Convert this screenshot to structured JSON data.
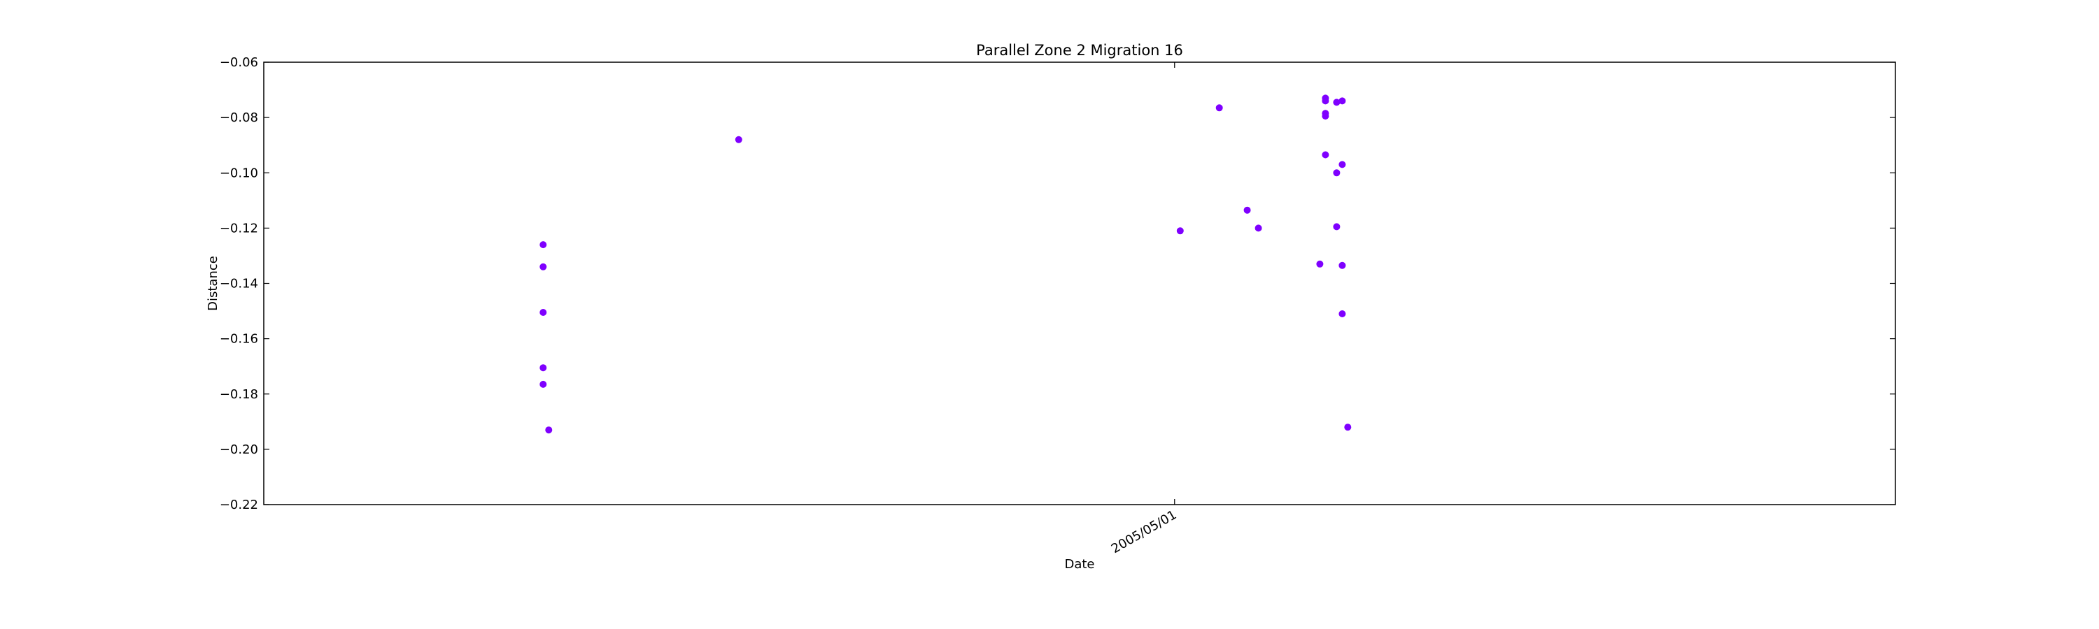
{
  "chart_data": {
    "type": "scatter",
    "title": "Parallel Zone 2 Migration 16",
    "xlabel": "Date",
    "ylabel": "Distance",
    "ylim": [
      -0.22,
      -0.06
    ],
    "yticks": [
      "-0.06",
      "-0.08",
      "-0.10",
      "-0.12",
      "-0.14",
      "-0.16",
      "-0.18",
      "-0.20",
      "-0.22"
    ],
    "xlim": [
      "2004-11-19",
      "2005-09-07"
    ],
    "xticks": [
      {
        "date": "2005-05-01",
        "label": "2005/05/01"
      }
    ],
    "grid": false,
    "legend": "none",
    "marker_color": "#7f00ff",
    "points": [
      {
        "x": "2005-01-08",
        "y": -0.126
      },
      {
        "x": "2005-01-08",
        "y": -0.134
      },
      {
        "x": "2005-01-08",
        "y": -0.1505
      },
      {
        "x": "2005-01-08",
        "y": -0.1705
      },
      {
        "x": "2005-01-08",
        "y": -0.1765
      },
      {
        "x": "2005-01-09",
        "y": -0.193
      },
      {
        "x": "2005-02-12",
        "y": -0.088
      },
      {
        "x": "2005-05-02",
        "y": -0.121
      },
      {
        "x": "2005-05-09",
        "y": -0.0765
      },
      {
        "x": "2005-05-14",
        "y": -0.1135
      },
      {
        "x": "2005-05-16",
        "y": -0.12
      },
      {
        "x": "2005-05-27",
        "y": -0.133
      },
      {
        "x": "2005-05-28",
        "y": -0.073
      },
      {
        "x": "2005-05-28",
        "y": -0.074
      },
      {
        "x": "2005-05-28",
        "y": -0.0785
      },
      {
        "x": "2005-05-28",
        "y": -0.0795
      },
      {
        "x": "2005-05-28",
        "y": -0.0935
      },
      {
        "x": "2005-05-30",
        "y": -0.0745
      },
      {
        "x": "2005-05-30",
        "y": -0.1
      },
      {
        "x": "2005-05-30",
        "y": -0.1195
      },
      {
        "x": "2005-05-31",
        "y": -0.074
      },
      {
        "x": "2005-05-31",
        "y": -0.097
      },
      {
        "x": "2005-05-31",
        "y": -0.1335
      },
      {
        "x": "2005-05-31",
        "y": -0.151
      },
      {
        "x": "2005-06-01",
        "y": -0.192
      }
    ]
  }
}
